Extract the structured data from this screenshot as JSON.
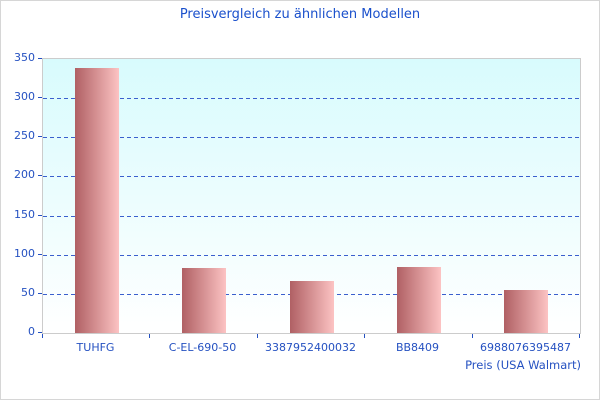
{
  "chart_data": {
    "type": "bar",
    "title": "Preisvergleich zu ähnlichen Modellen",
    "xlabel": "Preis (USA Walmart)",
    "ylabel": "",
    "categories": [
      "TUHFG",
      "C-EL-690-50",
      "3387952400032",
      "BB8409",
      "6988076395487"
    ],
    "values": [
      339,
      83,
      67,
      84,
      55
    ],
    "ylim": [
      0,
      350
    ],
    "yticks": [
      0,
      50,
      100,
      150,
      200,
      250,
      300,
      350
    ],
    "grid": "horizontal-dashed",
    "legend": "none"
  },
  "colors": {
    "title_text": "#1a50cc",
    "axis_text": "#2551c1",
    "gridline": "#3a5fce",
    "tick": "#2551c1",
    "plot_border": "#cccccc",
    "plot_bg_top": "#d8fbfd",
    "plot_bg_bottom": "#ffffff",
    "bar_dark": "#b06064",
    "bar_light": "#fcc3c3"
  }
}
